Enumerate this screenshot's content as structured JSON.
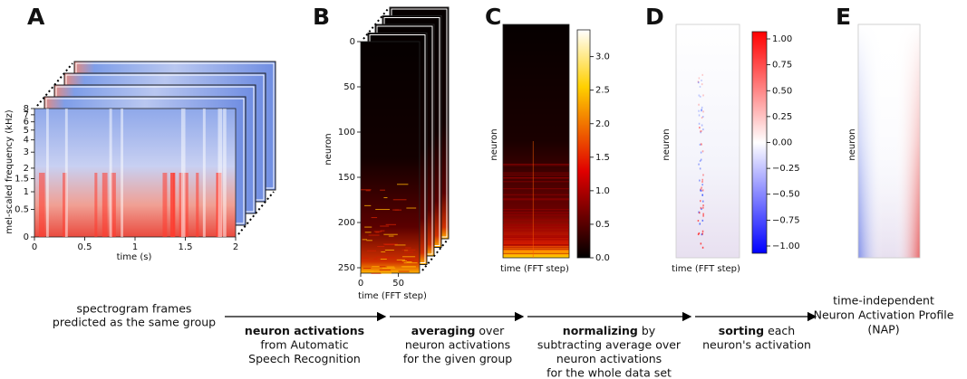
{
  "panels": [
    {
      "letter": "A",
      "xlabel": "time (s)",
      "ylabel": "mel-scaled frequency (kHz)",
      "xlim": [
        0,
        2
      ],
      "xticks": [
        0,
        0.5,
        1,
        1.5,
        2
      ],
      "ylim": [
        0,
        8
      ],
      "yticks": [
        0,
        0.5,
        1,
        1.5,
        2,
        3,
        4,
        5,
        6,
        7,
        8
      ],
      "yscale": "mel"
    },
    {
      "letter": "B",
      "xlabel": "time (FFT step)",
      "ylabel": "neuron",
      "xlim": [
        0,
        78
      ],
      "xticks": [
        0,
        50
      ],
      "ylim": [
        256,
        0
      ],
      "yticks": [
        0,
        50,
        100,
        150,
        200,
        250
      ]
    },
    {
      "letter": "C",
      "xlabel": "time (FFT step)",
      "ylabel": "neuron",
      "colorbar": {
        "lim": [
          0,
          3.4
        ],
        "ticks": [
          {
            "value": 0,
            "label": "0.0"
          },
          0.5,
          {
            "value": 1,
            "label": "1.0"
          },
          1.5,
          {
            "value": 2,
            "label": "2.0"
          },
          2.5,
          {
            "value": 3,
            "label": "3.0"
          }
        ]
      }
    },
    {
      "letter": "D",
      "xlabel": "time (FFT step)",
      "ylabel": "neuron",
      "colorbar": {
        "lim": [
          -1.07,
          1.07
        ],
        "ticks": [
          {
            "value": 1,
            "label": "1.00"
          },
          0.75,
          {
            "value": 0.5,
            "label": "0.50"
          },
          0.25,
          {
            "value": 0,
            "label": "0.00"
          },
          {
            "value": -0.25,
            "label": "−0.25"
          },
          {
            "value": -0.5,
            "label": "−0.50"
          },
          {
            "value": -0.75,
            "label": "−0.75"
          },
          {
            "value": -1,
            "label": "−1.00"
          }
        ]
      }
    },
    {
      "letter": "E",
      "ylabel": "neuron"
    }
  ],
  "flow": {
    "start": [
      "spectrogram frames",
      "predicted as the same group"
    ],
    "steps": [
      {
        "bold": "neuron activations",
        "lines": [
          "from Automatic",
          "Speech Recognition"
        ]
      },
      {
        "bold": "averaging",
        "rest": " over",
        "lines": [
          "neuron activations",
          "for the given group"
        ]
      },
      {
        "bold": "normalizing",
        "rest": " by",
        "lines": [
          "subtracting average over",
          "neuron activations",
          "for the whole data set"
        ]
      },
      {
        "bold": "sorting",
        "rest": " each",
        "lines": [
          "neuron's activation"
        ]
      }
    ],
    "end": [
      "time-independent",
      "Neuron Activation Profile",
      "(NAP)"
    ]
  }
}
